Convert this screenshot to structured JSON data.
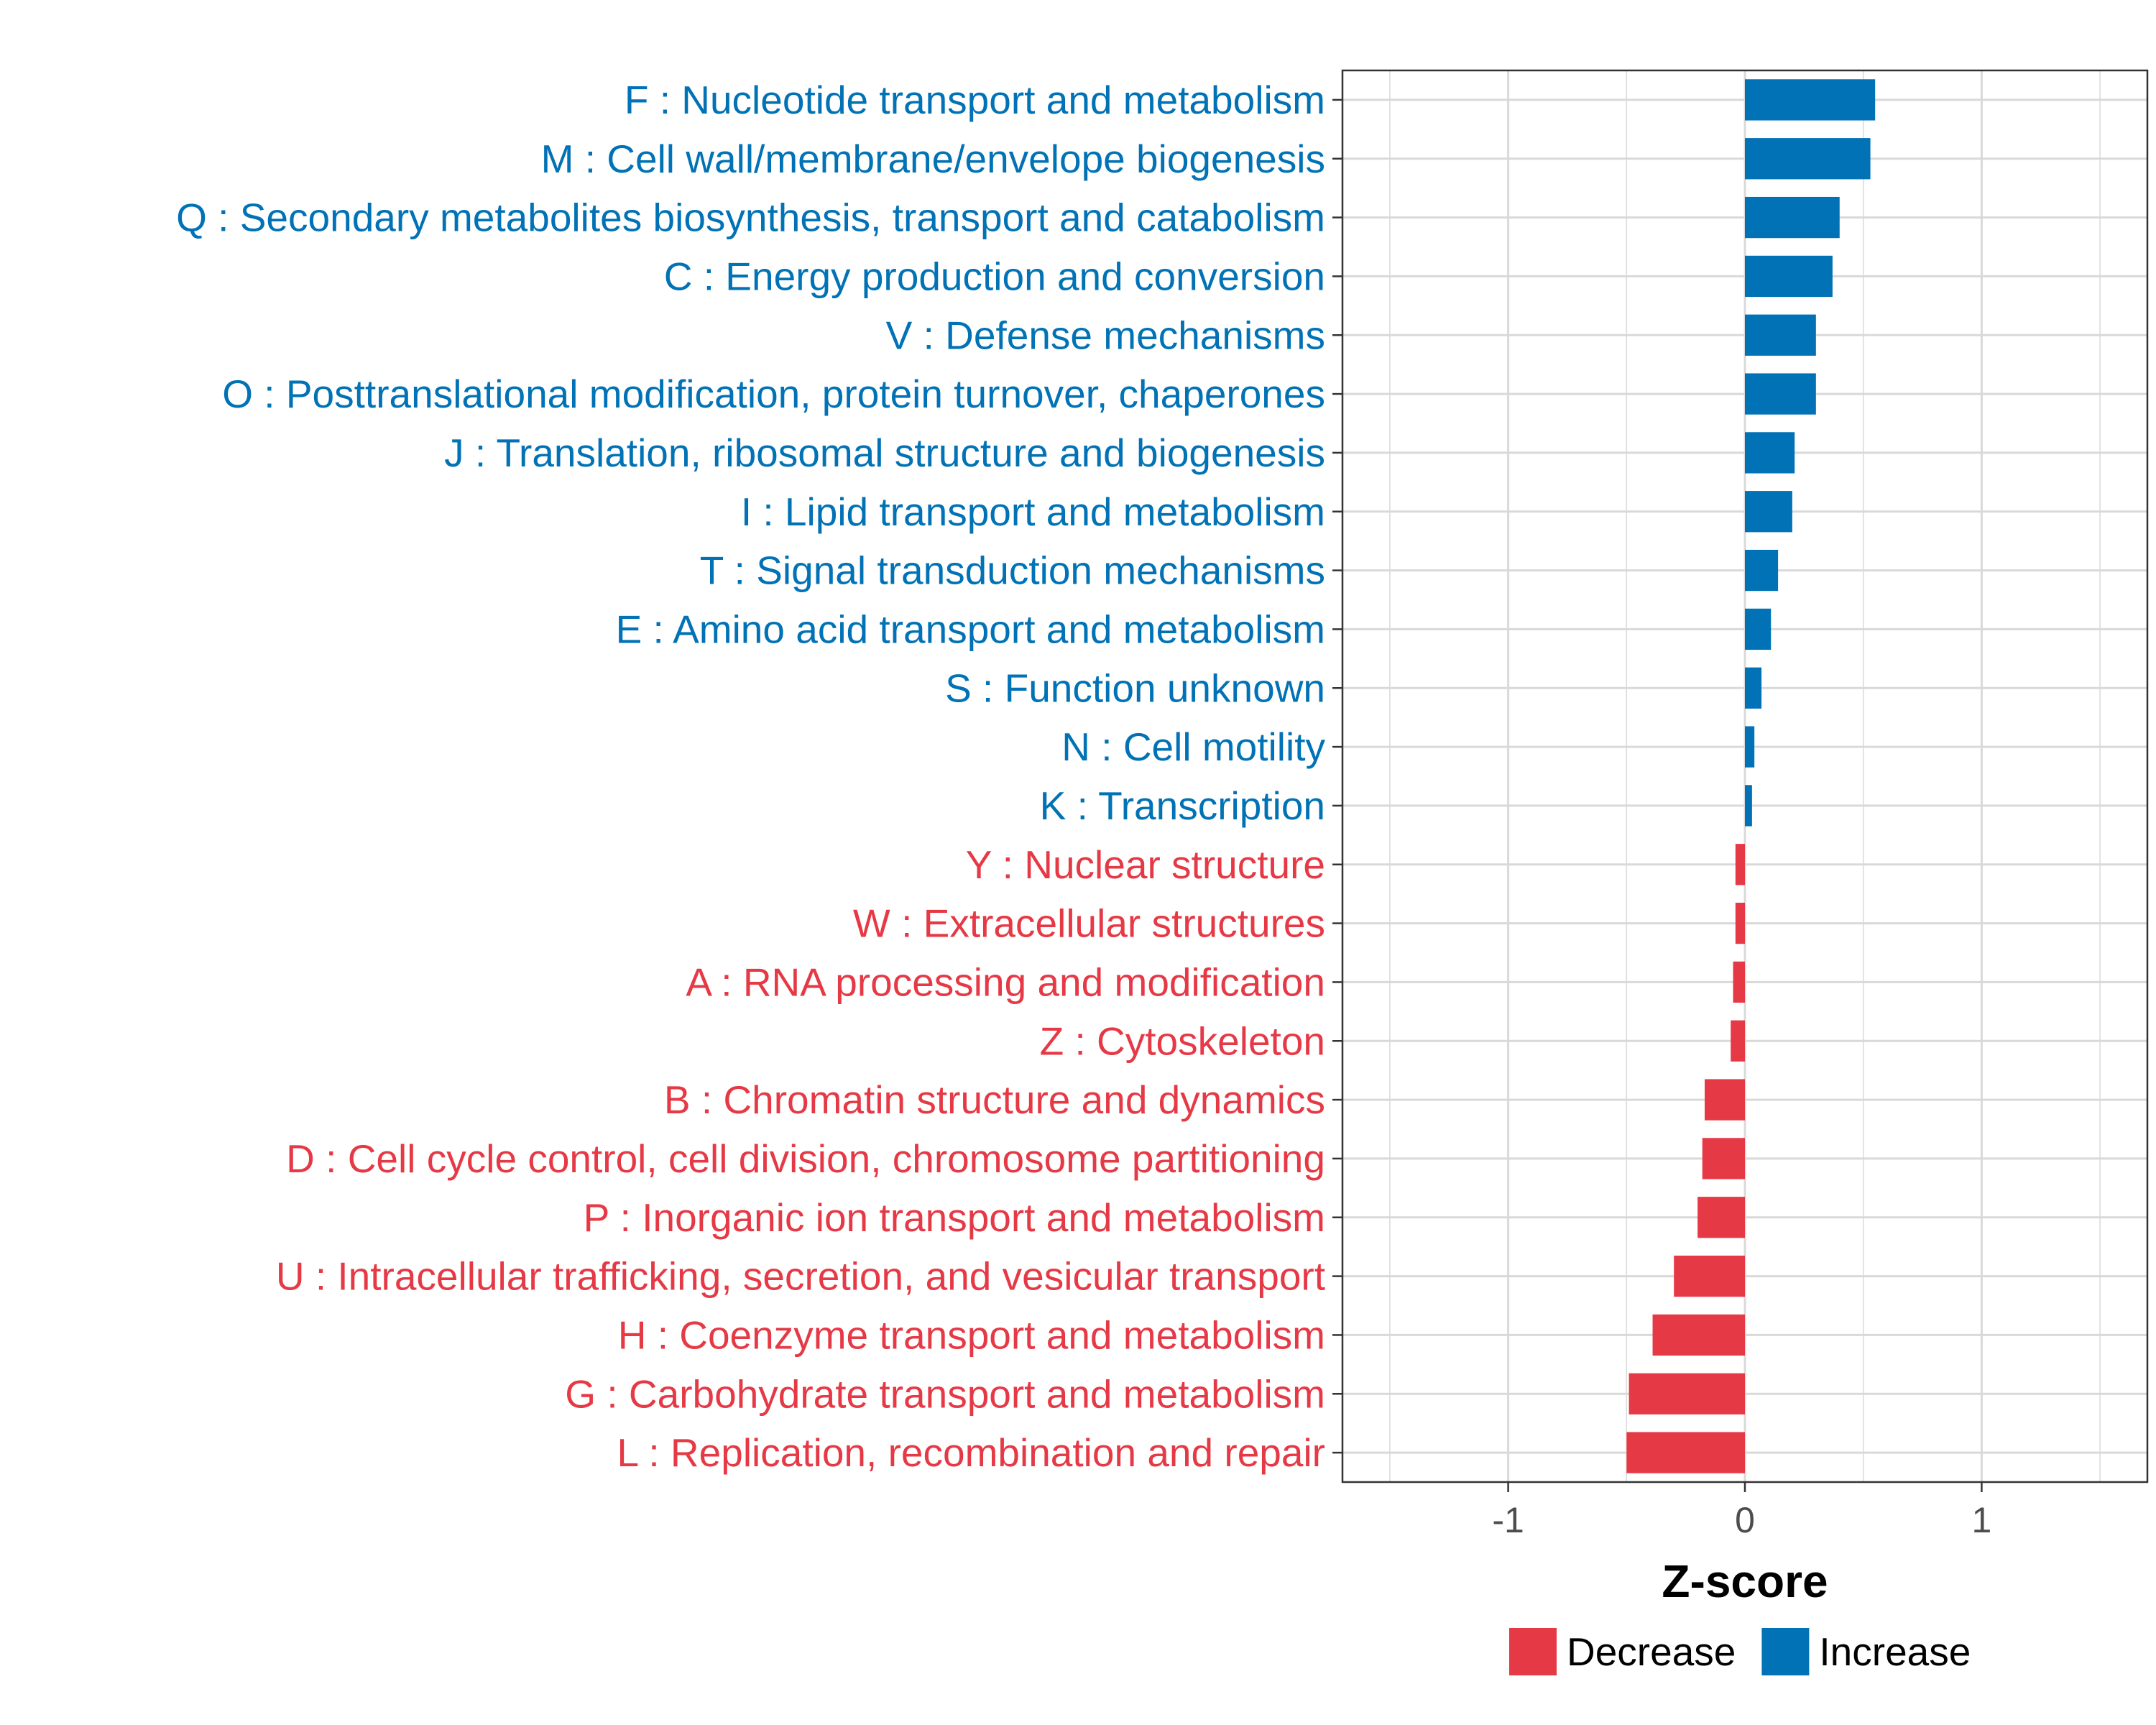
{
  "chart_data": {
    "type": "bar",
    "orientation": "horizontal",
    "title": "",
    "xlabel": "Z-score",
    "ylabel": "",
    "xlim": [
      -1.7,
      1.7
    ],
    "xticks": [
      -1,
      0,
      1
    ],
    "xtick_labels": [
      "-1",
      "0",
      "1"
    ],
    "grid": true,
    "legend_position": "bottom",
    "colors": {
      "Increase": "#0072b5",
      "Decrease": "#e63946",
      "grid": "#d9d9d9",
      "axis": "#333333"
    },
    "legend": [
      {
        "name": "Decrease",
        "color": "#e63946"
      },
      {
        "name": "Increase",
        "color": "#0072b5"
      }
    ],
    "categories": [
      "F : Nucleotide transport and metabolism",
      "M : Cell wall/membrane/envelope biogenesis",
      "Q : Secondary metabolites biosynthesis, transport and catabolism",
      "C : Energy production and conversion",
      "V : Defense mechanisms",
      "O : Posttranslational modification, protein turnover, chaperones",
      "J : Translation, ribosomal structure and biogenesis",
      "I : Lipid transport and metabolism",
      "T : Signal transduction mechanisms",
      "E : Amino acid transport and metabolism",
      "S : Function unknown",
      "N : Cell motility",
      "K : Transcription",
      "Y : Nuclear structure",
      "W : Extracellular structures",
      "A : RNA processing and modification",
      "Z : Cytoskeleton",
      "B : Chromatin structure and dynamics",
      "D : Cell cycle control, cell division, chromosome partitioning",
      "P : Inorganic ion transport and metabolism",
      "U : Intracellular trafficking, secretion, and vesicular transport",
      "H : Coenzyme transport and metabolism",
      "G : Carbohydrate transport and metabolism",
      "L : Replication, recombination and repair"
    ],
    "values": [
      0.55,
      0.53,
      0.4,
      0.37,
      0.3,
      0.3,
      0.21,
      0.2,
      0.14,
      0.11,
      0.07,
      0.04,
      0.03,
      -0.04,
      -0.04,
      -0.05,
      -0.06,
      -0.17,
      -0.18,
      -0.2,
      -0.3,
      -0.39,
      -0.49,
      -0.5
    ],
    "groups": [
      "Increase",
      "Increase",
      "Increase",
      "Increase",
      "Increase",
      "Increase",
      "Increase",
      "Increase",
      "Increase",
      "Increase",
      "Increase",
      "Increase",
      "Increase",
      "Decrease",
      "Decrease",
      "Decrease",
      "Decrease",
      "Decrease",
      "Decrease",
      "Decrease",
      "Decrease",
      "Decrease",
      "Decrease",
      "Decrease"
    ]
  }
}
